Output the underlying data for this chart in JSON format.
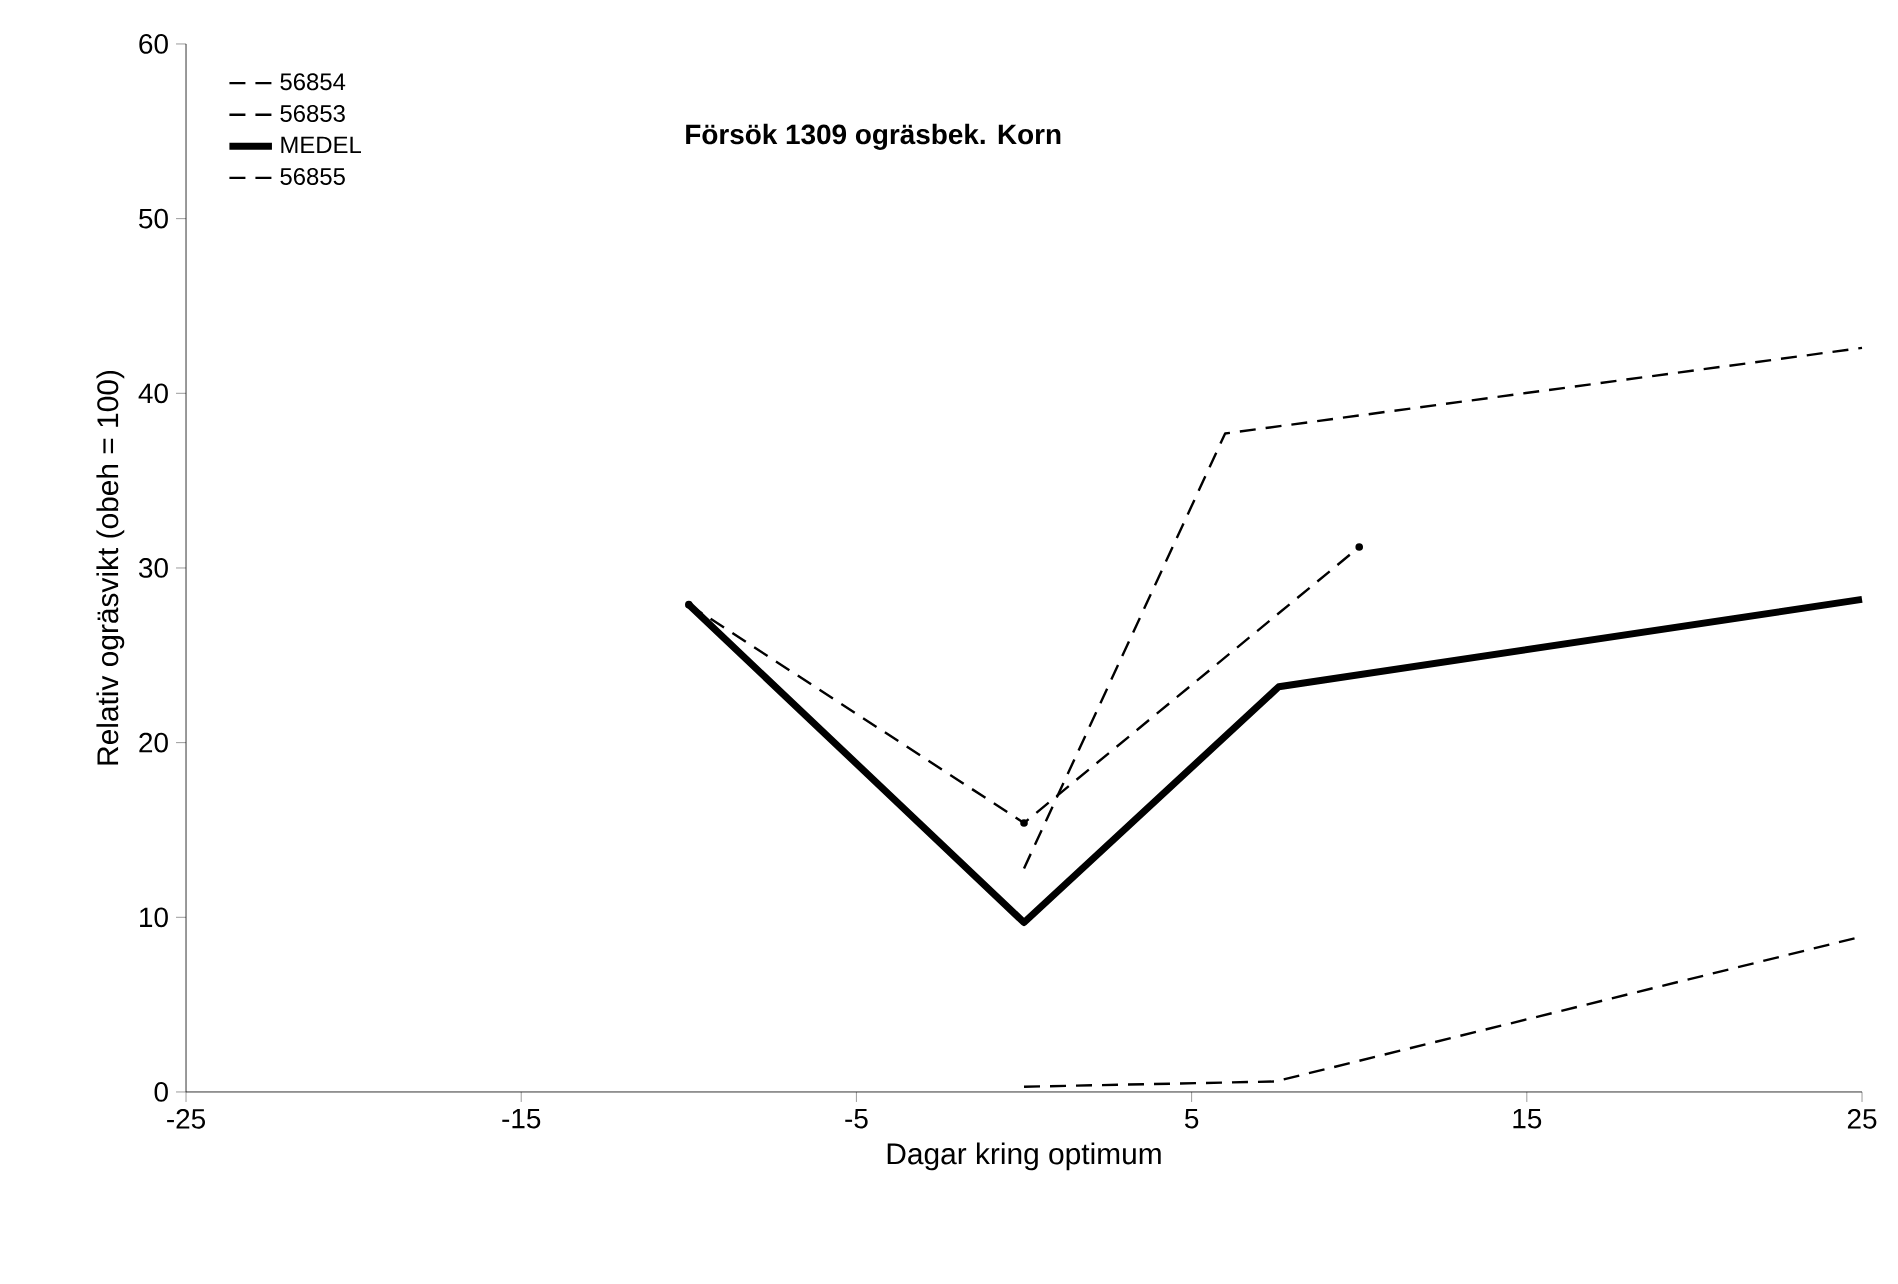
{
  "chart_data": {
    "type": "line",
    "title": "Försök 1309 ogräsbek. Korn",
    "xlabel": "Dagar kring optimum",
    "ylabel": "Relativ ogräsvikt (obeh = 100)",
    "xlim": [
      -25,
      25
    ],
    "xticks": [
      -25,
      -15,
      -5,
      5,
      15,
      25
    ],
    "ylim": [
      0,
      60
    ],
    "yticks": [
      0,
      10,
      20,
      30,
      40,
      50,
      60
    ],
    "legend": "top left",
    "grid": false,
    "series": [
      {
        "name": "56854",
        "color": "#000000",
        "line_style": "dashed",
        "marker": "none",
        "x": [
          0,
          6,
          25
        ],
        "values": [
          12.8,
          37.7,
          42.6
        ]
      },
      {
        "name": "56853",
        "color": "#000000",
        "line_style": "dashed",
        "marker": "circle",
        "x": [
          -10,
          0,
          10
        ],
        "values": [
          27.9,
          15.4,
          31.2
        ]
      },
      {
        "name": "MEDEL",
        "color": "#000000",
        "line_style": "solid",
        "marker": "none",
        "x": [
          -10,
          0,
          7.6,
          25
        ],
        "values": [
          27.9,
          9.7,
          23.2,
          28.2
        ]
      },
      {
        "name": "56855",
        "color": "#000000",
        "line_style": "dashed",
        "marker": "none",
        "x": [
          0,
          7.5,
          25
        ],
        "values": [
          0.3,
          0.6,
          8.9
        ]
      }
    ]
  }
}
